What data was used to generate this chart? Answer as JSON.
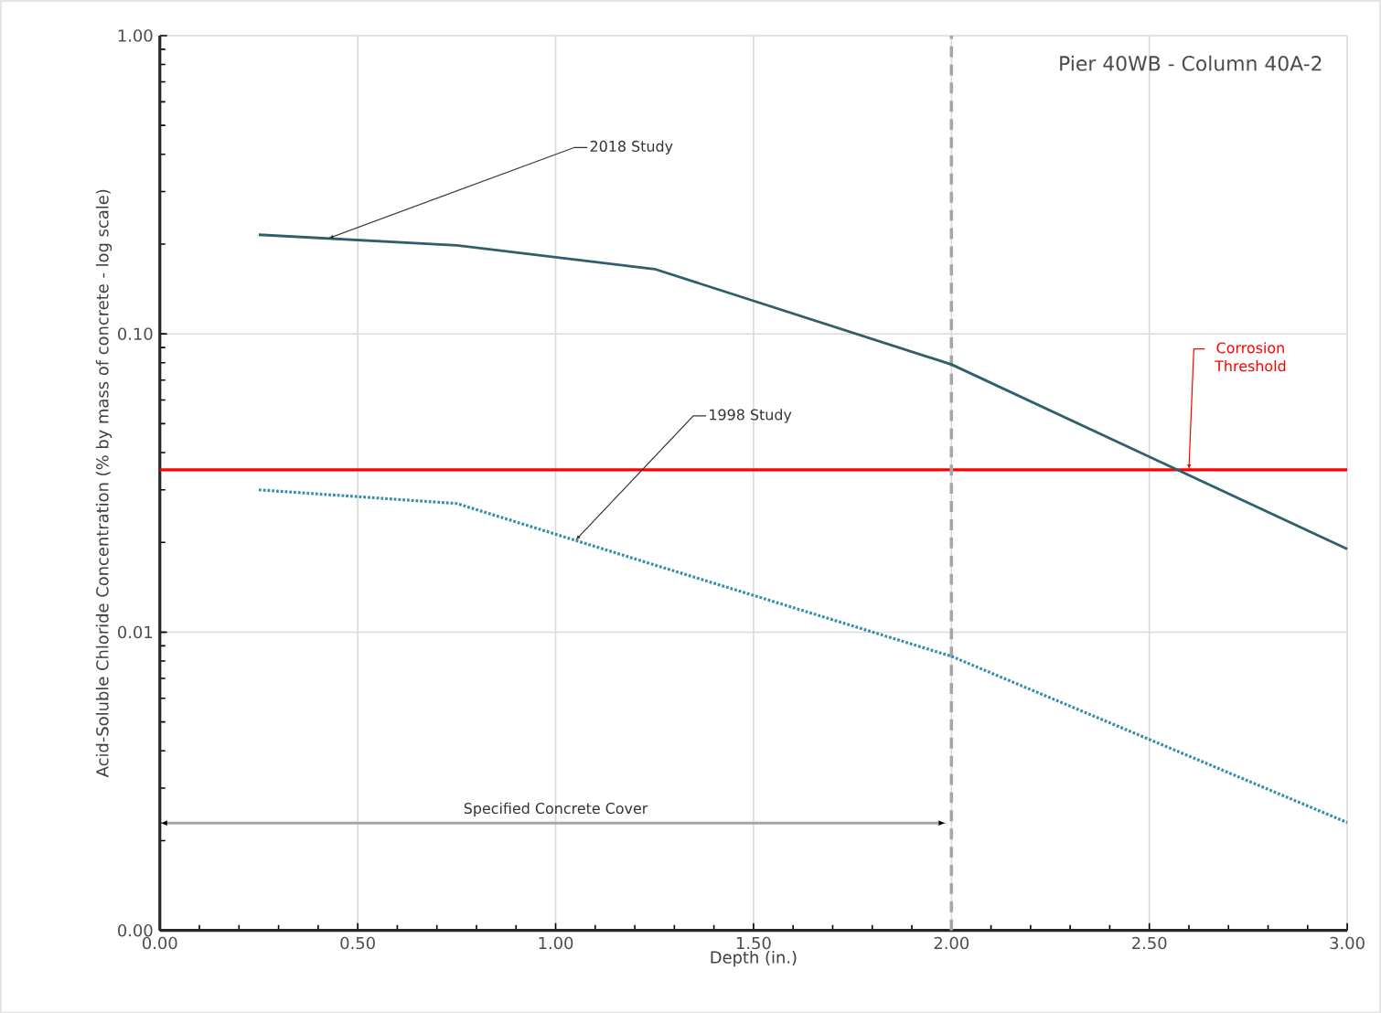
{
  "chart_data": {
    "type": "line",
    "title": "Pier 40WB - Column 40A-2",
    "xlabel": "Depth (in.)",
    "ylabel": "Acid-Soluble Chloride Concentration (% by mass of concrete - log scale)",
    "x": [
      0.25,
      0.75,
      1.25,
      2.0,
      3.0
    ],
    "series": [
      {
        "name": "2018 Study",
        "color": "#2f5f6a",
        "line_style": "solid",
        "values": [
          0.215,
          0.198,
          0.165,
          0.079,
          0.019
        ]
      },
      {
        "name": "1998 Study",
        "color": "#3a8fa8",
        "line_style": "dotted",
        "values": [
          0.03,
          0.027,
          0.0168,
          0.0083,
          0.0023
        ]
      }
    ],
    "log": "y",
    "grid": true,
    "marker": "none",
    "xlim": [
      0,
      3
    ],
    "ylim": [
      0.001,
      1
    ],
    "xticks": [
      {
        "value": 0,
        "label": "0.00"
      },
      {
        "value": 0.5,
        "label": "0.50"
      },
      {
        "value": 1,
        "label": "1.00"
      },
      {
        "value": 1.5,
        "label": "1.50"
      },
      {
        "value": 2,
        "label": "2.00"
      },
      {
        "value": 2.5,
        "label": "2.50"
      },
      {
        "value": 3,
        "label": "3.00"
      }
    ],
    "yticks": [
      {
        "value": 0.001,
        "label": "0.00"
      },
      {
        "value": 0.01,
        "label": "0.01"
      },
      {
        "value": 0.1,
        "label": "0.10"
      },
      {
        "value": 1,
        "label": "1.00"
      }
    ],
    "ref_lines": [
      {
        "axis": "y",
        "value": 0.035,
        "label": "Corrosion Threshold",
        "color": "#ff0000",
        "line_style": "solid"
      },
      {
        "axis": "x",
        "value": 2,
        "color": "#a6a6a6",
        "line_style": "dashed"
      }
    ],
    "annotations": [
      "Specified Concrete Cover"
    ]
  }
}
